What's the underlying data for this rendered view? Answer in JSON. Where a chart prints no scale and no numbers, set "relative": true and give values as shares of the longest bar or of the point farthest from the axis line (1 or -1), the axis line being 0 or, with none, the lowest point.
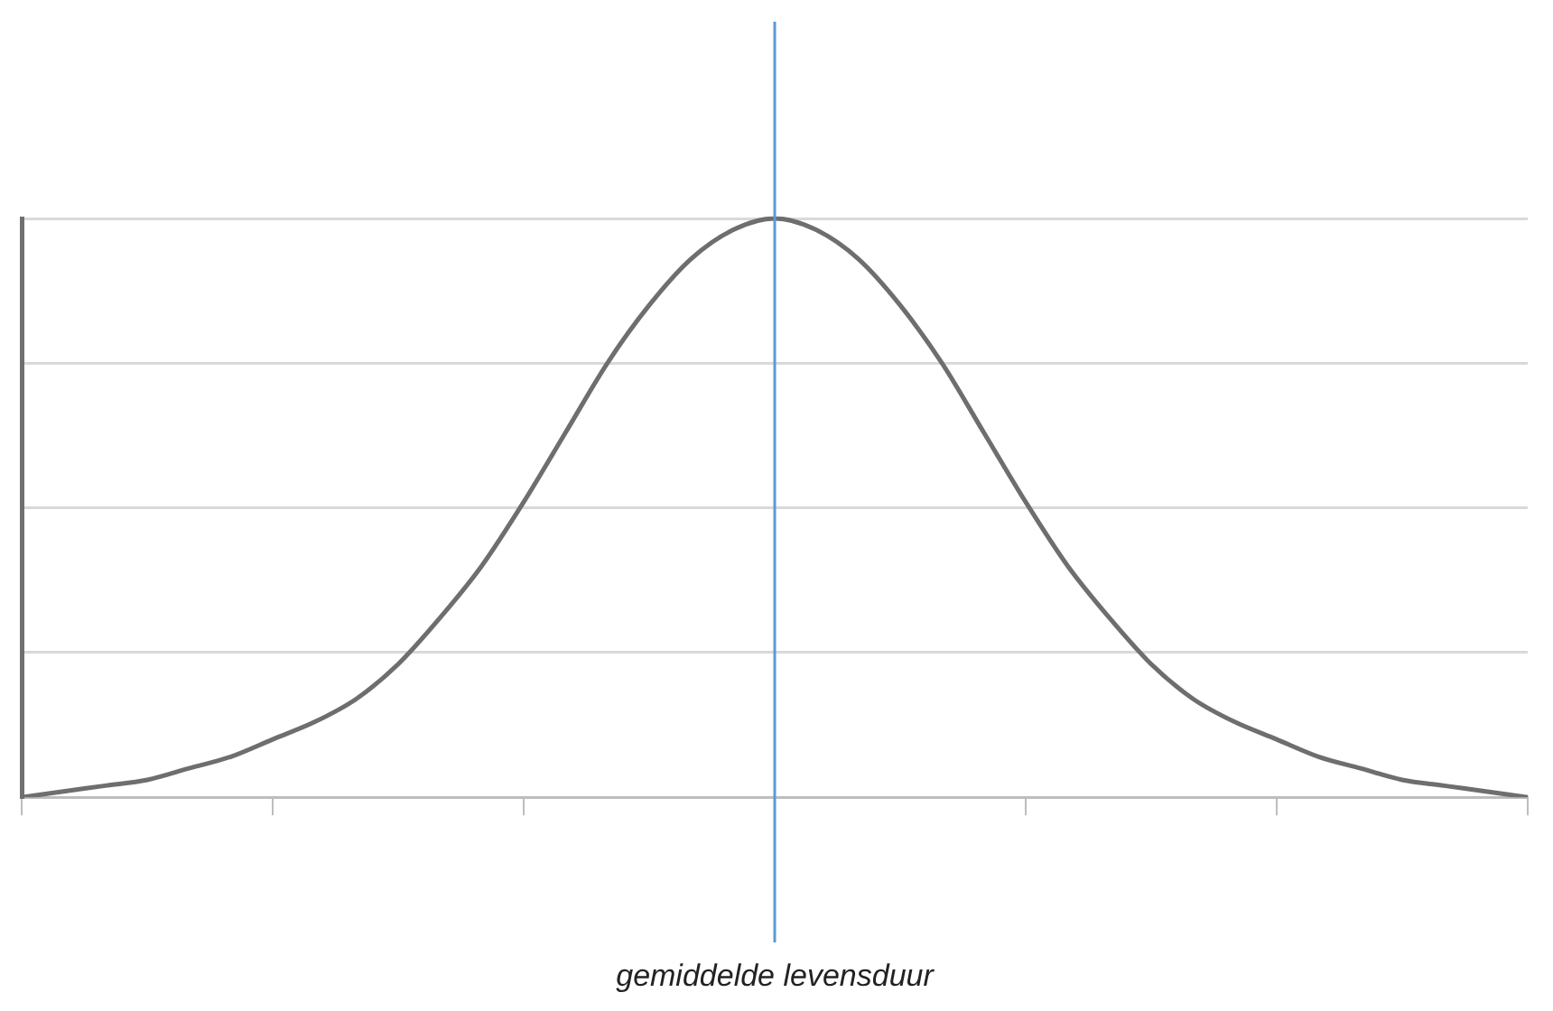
{
  "chart_data": {
    "type": "line",
    "relative": true,
    "grid": "y",
    "marker": "none",
    "line_style": "solid",
    "annotations": [
      "gemiddelde levensduur"
    ],
    "categories": [
      null,
      null,
      null,
      null,
      null,
      null,
      null,
      null,
      null,
      null,
      null,
      null,
      null,
      null,
      null,
      null,
      null,
      null,
      null,
      null,
      null,
      null,
      null,
      null,
      null,
      null,
      null,
      null,
      null,
      null,
      null,
      null,
      null,
      null,
      null,
      null,
      null
    ],
    "series": [
      {
        "color": "#6e6e6e",
        "values": [
          0,
          0.01,
          0.02,
          0.03,
          0.05,
          0.07,
          0.1,
          0.13,
          0.17,
          0.23,
          0.31,
          0.4,
          0.51,
          0.63,
          0.75,
          0.85,
          0.93,
          0.98,
          1,
          0.98,
          0.93,
          0.85,
          0.75,
          0.63,
          0.51,
          0.4,
          0.31,
          0.23,
          0.17,
          0.13,
          0.1,
          0.07,
          0.05,
          0.03,
          0.02,
          0.01,
          0
        ]
      }
    ]
  }
}
